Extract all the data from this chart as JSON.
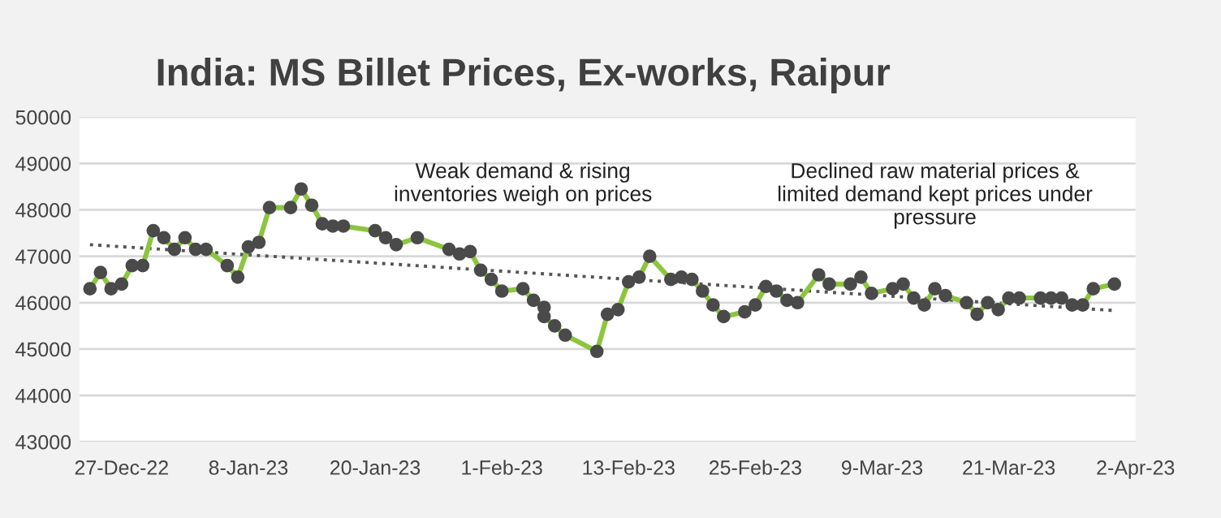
{
  "chart_data": {
    "type": "line",
    "title": "India: MS Billet Prices, Ex-works, Raipur",
    "series": [
      {
        "color": "#8cc63f",
        "marker": "circle",
        "line_style": "solid",
        "x": [
          "2022-12-24",
          "2022-12-25",
          "2022-12-26",
          "2022-12-27",
          "2022-12-28",
          "2022-12-29",
          "2022-12-30",
          "2022-12-31",
          "2023-01-01",
          "2023-01-02",
          "2023-01-03",
          "2023-01-04",
          "2023-01-06",
          "2023-01-07",
          "2023-01-08",
          "2023-01-09",
          "2023-01-10",
          "2023-01-12",
          "2023-01-13",
          "2023-01-14",
          "2023-01-15",
          "2023-01-16",
          "2023-01-17",
          "2023-01-20",
          "2023-01-21",
          "2023-01-22",
          "2023-01-24",
          "2023-01-27",
          "2023-01-28",
          "2023-01-29",
          "2023-01-30",
          "2023-01-31",
          "2023-02-01",
          "2023-02-03",
          "2023-02-04",
          "2023-02-05",
          "2023-02-05",
          "2023-02-06",
          "2023-02-07",
          "2023-02-10",
          "2023-02-11",
          "2023-02-12",
          "2023-02-13",
          "2023-02-14",
          "2023-02-15",
          "2023-02-17",
          "2023-02-18",
          "2023-02-19",
          "2023-02-20",
          "2023-02-21",
          "2023-02-22",
          "2023-02-24",
          "2023-02-25",
          "2023-02-26",
          "2023-02-27",
          "2023-02-28",
          "2023-03-01",
          "2023-03-03",
          "2023-03-04",
          "2023-03-06",
          "2023-03-07",
          "2023-03-08",
          "2023-03-10",
          "2023-03-11",
          "2023-03-12",
          "2023-03-13",
          "2023-03-14",
          "2023-03-15",
          "2023-03-17",
          "2023-03-18",
          "2023-03-19",
          "2023-03-20",
          "2023-03-21",
          "2023-03-22",
          "2023-03-24",
          "2023-03-25",
          "2023-03-26",
          "2023-03-27",
          "2023-03-28",
          "2023-03-29",
          "2023-03-31"
        ],
        "values": [
          46300,
          46650,
          46300,
          46400,
          46800,
          46800,
          47550,
          47400,
          47150,
          47400,
          47150,
          47150,
          46800,
          46550,
          47200,
          47300,
          48050,
          48050,
          48450,
          48100,
          47700,
          47650,
          47650,
          47550,
          47400,
          47250,
          47400,
          47150,
          47050,
          47100,
          46700,
          46500,
          46250,
          46300,
          46050,
          45900,
          45700,
          45500,
          45300,
          44950,
          45750,
          45850,
          46450,
          46550,
          47000,
          46500,
          46550,
          46500,
          46250,
          45950,
          45700,
          45800,
          45950,
          46350,
          46250,
          46050,
          46000,
          46600,
          46400,
          46400,
          46550,
          46200,
          46300,
          46400,
          46100,
          45950,
          46300,
          46150,
          46000,
          45750,
          46000,
          45850,
          46100,
          46100,
          46100,
          46100,
          46100,
          45950,
          45950,
          46300,
          46400
        ]
      },
      {
        "color": "#555555",
        "marker": "none",
        "line_style": "dotted",
        "x": [
          "2022-12-24",
          "2023-03-31"
        ],
        "values": [
          47250,
          45830
        ]
      }
    ],
    "xlim": [
      "2022-12-23",
      "2023-04-02"
    ],
    "xticks": [
      {
        "value": "2022-12-27",
        "label": "27-Dec-22"
      },
      {
        "value": "2023-01-08",
        "label": "8-Jan-23"
      },
      {
        "value": "2023-01-20",
        "label": "20-Jan-23"
      },
      {
        "value": "2023-02-01",
        "label": "1-Feb-23"
      },
      {
        "value": "2023-02-13",
        "label": "13-Feb-23"
      },
      {
        "value": "2023-02-25",
        "label": "25-Feb-23"
      },
      {
        "value": "2023-03-09",
        "label": "9-Mar-23"
      },
      {
        "value": "2023-03-21",
        "label": "21-Mar-23"
      },
      {
        "value": "2023-04-02",
        "label": "2-Apr-23"
      }
    ],
    "ylim": [
      43000,
      50000
    ],
    "yticks": [
      43000,
      44000,
      45000,
      46000,
      47000,
      48000,
      49000,
      50000
    ],
    "grid": "y",
    "legend": false,
    "annotations": [
      "Weak demand & rising\ninventories weigh on prices",
      "Declined raw material prices &\nlimited demand kept prices under\npressure"
    ]
  }
}
